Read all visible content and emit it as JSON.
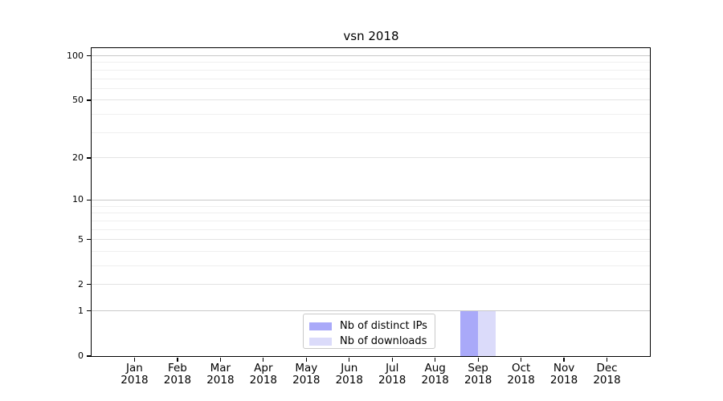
{
  "chart_data": {
    "type": "bar",
    "title": "vsn 2018",
    "xlabel": "",
    "ylabel": "",
    "categories": [
      "Jan 2018",
      "Feb 2018",
      "Mar 2018",
      "Apr 2018",
      "May 2018",
      "Jun 2018",
      "Jul 2018",
      "Aug 2018",
      "Sep 2018",
      "Oct 2018",
      "Nov 2018",
      "Dec 2018"
    ],
    "series": [
      {
        "name": "Nb of distinct IPs",
        "color": "#a9a9f9",
        "values": [
          0,
          0,
          0,
          0,
          0,
          0,
          0,
          0,
          1,
          0,
          0,
          0
        ]
      },
      {
        "name": "Nb of downloads",
        "color": "#dbdbfa",
        "values": [
          0,
          0,
          0,
          0,
          0,
          0,
          0,
          0,
          1,
          0,
          0,
          0
        ]
      }
    ],
    "y_scale": "log1p",
    "ylim": [
      0,
      114
    ],
    "grid": "horizontal",
    "legend_position": "bottom-center-inside",
    "y_ticks_labeled": [
      {
        "value": 100,
        "label": "100"
      },
      {
        "value": 50,
        "label": "50"
      },
      {
        "value": 20,
        "label": "20"
      },
      {
        "value": 10,
        "label": "10"
      },
      {
        "value": 5,
        "label": "5"
      },
      {
        "value": 2,
        "label": "2"
      },
      {
        "value": 1,
        "label": "1"
      },
      {
        "value": 0,
        "label": "0"
      }
    ],
    "y_gridlines_major": [
      1,
      10,
      100
    ],
    "y_gridlines_mid": [
      2,
      5,
      20,
      50
    ],
    "y_gridlines_minor": [
      3,
      4,
      6,
      7,
      8,
      9,
      30,
      40,
      60,
      70,
      80,
      90
    ]
  },
  "x_axis": {
    "ticks": [
      {
        "month": "Jan",
        "year": "2018"
      },
      {
        "month": "Feb",
        "year": "2018"
      },
      {
        "month": "Mar",
        "year": "2018"
      },
      {
        "month": "Apr",
        "year": "2018"
      },
      {
        "month": "May",
        "year": "2018"
      },
      {
        "month": "Jun",
        "year": "2018"
      },
      {
        "month": "Jul",
        "year": "2018"
      },
      {
        "month": "Aug",
        "year": "2018"
      },
      {
        "month": "Sep",
        "year": "2018"
      },
      {
        "month": "Oct",
        "year": "2018"
      },
      {
        "month": "Nov",
        "year": "2018"
      },
      {
        "month": "Dec",
        "year": "2018"
      }
    ]
  },
  "legend": {
    "items": [
      {
        "label": "Nb of distinct IPs",
        "color": "#a9a9f9"
      },
      {
        "label": "Nb of downloads",
        "color": "#dbdbfa"
      }
    ]
  },
  "colors": {
    "background": "#ffffff",
    "axis": "#000000",
    "major_grid": "#c8c8c8",
    "mid_grid": "#e3e3e3",
    "minor_grid": "#efefef",
    "legend_border": "#c9c9c9",
    "bar_distinct_ips": "#a9a9f9",
    "bar_downloads": "#dbdbfa"
  }
}
